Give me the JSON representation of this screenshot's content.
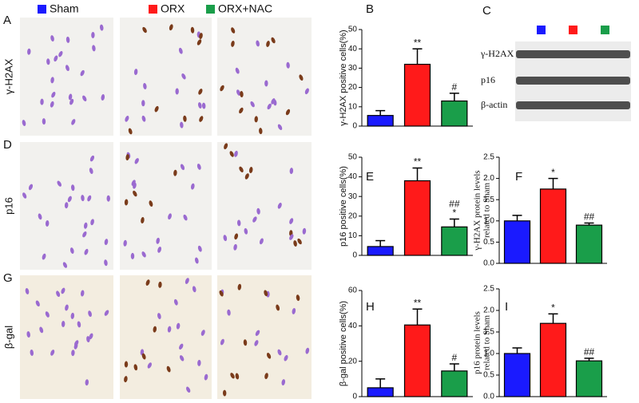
{
  "legend": [
    {
      "name": "Sham",
      "color": "#1a1aff"
    },
    {
      "name": "ORX",
      "color": "#ff1a1a"
    },
    {
      "name": "ORX+NAC",
      "color": "#1a9e4a"
    }
  ],
  "image_rows": [
    {
      "letter": "A",
      "label": "γ-H2AX"
    },
    {
      "letter": "D",
      "label": "p16"
    },
    {
      "letter": "G",
      "label": "β-gal"
    }
  ],
  "blot": {
    "letter": "C",
    "rows": [
      "γ-H2AX",
      "p16",
      "β-actin"
    ]
  },
  "chart_data": [
    {
      "type": "bar",
      "letter": "B",
      "ylabel": "γ-H2AX positive cells(%)",
      "categories": [
        null,
        null,
        null
      ],
      "values": [
        5.5,
        32,
        13
      ],
      "errors": [
        2.5,
        8,
        4
      ],
      "annotations": [
        null,
        [
          "**"
        ],
        [
          "#"
        ]
      ],
      "ylim": [
        0,
        50
      ],
      "yticks": [
        0,
        10,
        20,
        30,
        40,
        50
      ]
    },
    {
      "type": "bar",
      "letter": "E",
      "ylabel": "p16 positive cells(%)",
      "categories": [
        null,
        null,
        null
      ],
      "values": [
        4.5,
        38,
        14.5
      ],
      "errors": [
        3,
        6.5,
        4
      ],
      "annotations": [
        null,
        [
          "**"
        ],
        [
          "##",
          "*"
        ]
      ],
      "ylim": [
        0,
        50
      ],
      "yticks": [
        0,
        10,
        20,
        30,
        40,
        50
      ]
    },
    {
      "type": "bar",
      "letter": "F",
      "ylabel": [
        "γ-H2AX protein levels",
        "related to Sham"
      ],
      "categories": [
        null,
        null,
        null
      ],
      "values": [
        1.0,
        1.75,
        0.9
      ],
      "errors": [
        0.13,
        0.25,
        0.05
      ],
      "annotations": [
        null,
        [
          "*"
        ],
        [
          "##"
        ]
      ],
      "ylim": [
        0,
        2.5
      ],
      "yticks": [
        {
          "value": 0,
          "label": "0.0"
        },
        0.5,
        {
          "value": 1,
          "label": "1.0"
        },
        1.5,
        {
          "value": 2,
          "label": "2.0"
        },
        2.5
      ]
    },
    {
      "type": "bar",
      "letter": "H",
      "ylabel": "β-gal positive cells(%)",
      "categories": [
        null,
        null,
        null
      ],
      "values": [
        5,
        40.5,
        14.5
      ],
      "errors": [
        5,
        9,
        4
      ],
      "annotations": [
        null,
        [
          "**"
        ],
        [
          "#"
        ]
      ],
      "ylim": [
        0,
        60
      ],
      "yticks": [
        0,
        20,
        40,
        60
      ]
    },
    {
      "type": "bar",
      "letter": "I",
      "ylabel": [
        "p16 protein levels",
        "related to Sham"
      ],
      "categories": [
        null,
        null,
        null
      ],
      "values": [
        1.0,
        1.7,
        0.83
      ],
      "errors": [
        0.13,
        0.22,
        0.06
      ],
      "annotations": [
        null,
        [
          "*"
        ],
        [
          "##"
        ]
      ],
      "ylim": [
        0,
        2.5
      ],
      "yticks": [
        {
          "value": 0,
          "label": "0.0"
        },
        0.5,
        {
          "value": 1,
          "label": "1.0"
        },
        1.5,
        {
          "value": 2,
          "label": "2.0"
        },
        2.5
      ]
    }
  ]
}
